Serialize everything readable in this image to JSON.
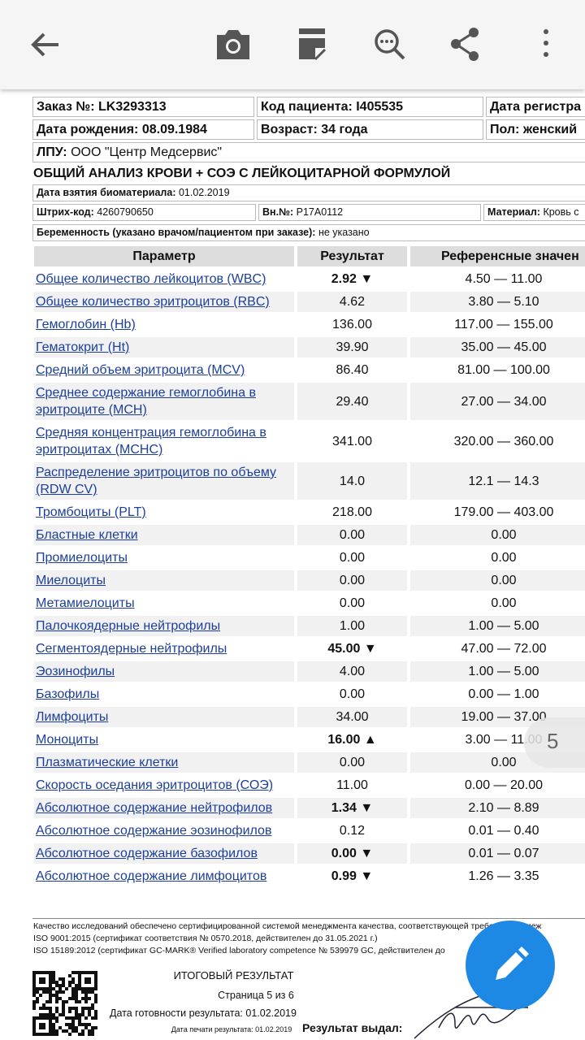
{
  "header": {
    "rows": [
      [
        "Заказ №: LK3293313",
        "Код пациента: I405535",
        "Дата регистра"
      ],
      [
        "Дата рождения: 08.09.1984",
        "Возраст: 34 года",
        "Пол: женский"
      ]
    ],
    "lpu": {
      "label": "ЛПУ:",
      "value": "ООО \"Центр Медсервис\""
    }
  },
  "title": "ОБЩИЙ АНАЛИЗ КРОВИ + СОЭ С ЛЕЙКОЦИТАРНОЙ ФОРМУЛОЙ",
  "info": {
    "sample_date": {
      "label": "Дата взятия биоматериала:",
      "value": "01.02.2019"
    },
    "barcode": {
      "label": "Штрих-код:",
      "value": "4260790650"
    },
    "internal_no": {
      "label": "Вн.№:",
      "value": "P17A0112"
    },
    "material": {
      "label": "Материал:",
      "value": "Кровь с"
    },
    "pregnancy": {
      "label": "Беременность (указано врачом/пациентом при заказе):",
      "value": "не указано"
    }
  },
  "table": {
    "columns": [
      "Параметр",
      "Результат",
      "Референсные значен"
    ],
    "rows": [
      {
        "parameter": "Общее количество лейкоцитов (WBC)",
        "result": "2.92",
        "flag": "▼",
        "reference": "4.50 — 11.00"
      },
      {
        "parameter": "Общее количество эритроцитов (RBC)",
        "result": "4.62",
        "reference": "3.80 — 5.10"
      },
      {
        "parameter": "Гемоглобин (Hb)",
        "result": "136.00",
        "reference": "117.00 — 155.00"
      },
      {
        "parameter": "Гематокрит (Ht)",
        "result": "39.90",
        "reference": "35.00 — 45.00"
      },
      {
        "parameter": "Средний объем эритроцита (MCV)",
        "result": "86.40",
        "reference": "81.00 — 100.00"
      },
      {
        "parameter": "Среднее содержание гемоглобина в эритроците (MCH)",
        "result": "29.40",
        "reference": "27.00 — 34.00"
      },
      {
        "parameter": "Средняя концентрация гемоглобина в эритроцитах (MCHC)",
        "result": "341.00",
        "reference": "320.00 — 360.00"
      },
      {
        "parameter": "Распределение эритроцитов по объему (RDW CV)",
        "result": "14.0",
        "reference": "12.1 — 14.3"
      },
      {
        "parameter": "Тромбоциты (PLT)",
        "result": "218.00",
        "reference": "179.00 — 403.00"
      },
      {
        "parameter": "Бластные клетки",
        "result": "0.00",
        "reference": "0.00"
      },
      {
        "parameter": "Промиелоциты",
        "result": "0.00",
        "reference": "0.00"
      },
      {
        "parameter": "Миелоциты",
        "result": "0.00",
        "reference": "0.00"
      },
      {
        "parameter": "Метамиелоциты",
        "result": "0.00",
        "reference": "0.00"
      },
      {
        "parameter": "Палочкоядерные нейтрофилы",
        "result": "1.00",
        "reference": "1.00 — 5.00"
      },
      {
        "parameter": "Сегментоядерные нейтрофилы",
        "result": "45.00",
        "flag": "▼",
        "reference": "47.00 — 72.00"
      },
      {
        "parameter": "Эозинофилы",
        "result": "4.00",
        "reference": "1.00 — 5.00"
      },
      {
        "parameter": "Базофилы",
        "result": "0.00",
        "reference": "0.00 — 1.00"
      },
      {
        "parameter": "Лимфоциты",
        "result": "34.00",
        "reference": "19.00 — 37.00"
      },
      {
        "parameter": "Моноциты",
        "result": "16.00",
        "flag": "▲",
        "reference": "3.00 — 11.00"
      },
      {
        "parameter": "Плазматические клетки",
        "result": "0.00",
        "reference": "0.00"
      },
      {
        "parameter": "Скорость оседания эритроцитов (СОЭ)",
        "result": "11.00",
        "reference": "0.00 — 20.00"
      },
      {
        "parameter": "Абсолютное содержание нейтрофилов",
        "result": "1.34",
        "flag": "▼",
        "reference": "2.10 — 8.89"
      },
      {
        "parameter": "Абсолютное содержание эозинофилов",
        "result": "0.12",
        "reference": "0.01 — 0.40"
      },
      {
        "parameter": "Абсолютное содержание базофилов",
        "result": "0.00",
        "flag": "▼",
        "reference": "0.01 — 0.07"
      },
      {
        "parameter": "Абсолютное содержание лимфоцитов",
        "result": "0.99",
        "flag": "▼",
        "reference": "1.26 — 3.35"
      }
    ]
  },
  "footer": {
    "lines": [
      "Качество исследований обеспечено сертифицированной системой менеджмента качества, соответствующей требованиям меж",
      "ISO 9001:2015 (сертификат соответствия № 0570.2018, действителен до 31.05.2021 г.)",
      "ISO 15189:2012 (сертификат GC-MARK® Verified laboratory competence № 539979 GC, действителен до"
    ],
    "summary_title": "ИТОГОВЫЙ РЕЗУЛЬТАТ",
    "page": "Страница 5 из 6",
    "ready_date": "Дата готовности результата: 01.02.2019",
    "print_date": "Дата печати результата: 01.02.2019",
    "issued_by": "Результат выдал:"
  },
  "page_indicator": "5"
}
